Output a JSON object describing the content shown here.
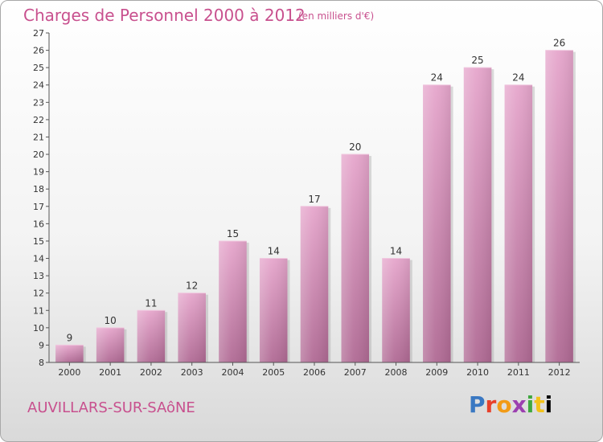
{
  "header": {
    "title": "Charges de Personnel 2000 à 2012",
    "subtitle": "(en milliers d'€)"
  },
  "footer": {
    "city": "AUVILLARS-SUR-SAôNE",
    "logo": "Proxiti"
  },
  "colors": {
    "accent": "#c8508e",
    "bar_top": "#e6a6cc",
    "bar_bottom": "#b06a94"
  },
  "chart_data": {
    "type": "bar",
    "categories": [
      "2000",
      "2001",
      "2002",
      "2003",
      "2004",
      "2005",
      "2006",
      "2007",
      "2008",
      "2009",
      "2010",
      "2011",
      "2012"
    ],
    "values": [
      9,
      10,
      11,
      12,
      15,
      14,
      17,
      20,
      14,
      24,
      25,
      24,
      26
    ],
    "ylim": [
      8,
      27
    ],
    "yticks": [
      8,
      9,
      10,
      11,
      12,
      13,
      14,
      15,
      16,
      17,
      18,
      19,
      20,
      21,
      22,
      23,
      24,
      25,
      26,
      27
    ],
    "grid": false,
    "title": "Charges de Personnel 2000 à 2012",
    "xlabel": "",
    "ylabel": ""
  }
}
